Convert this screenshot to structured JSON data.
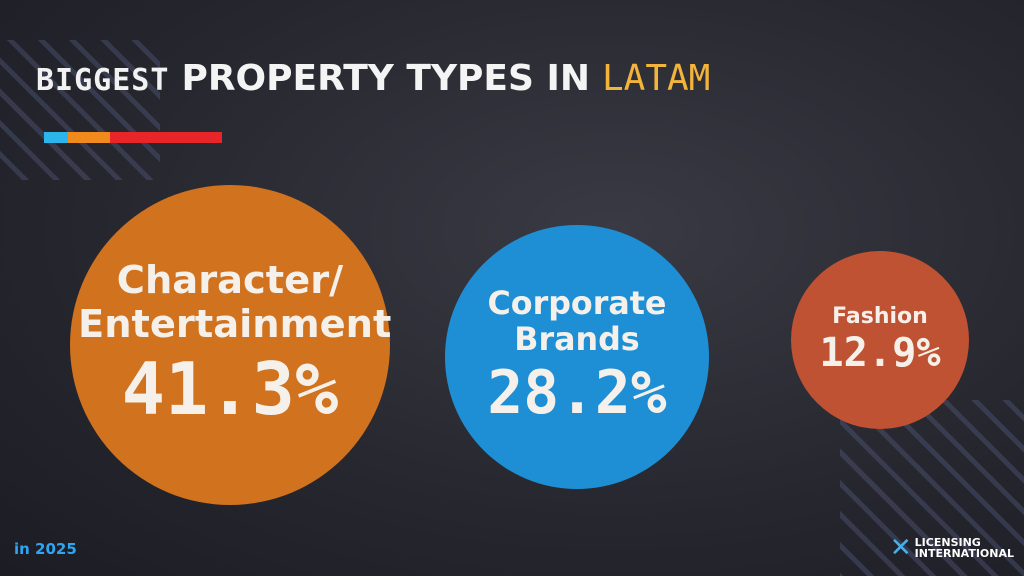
{
  "chart_data": {
    "type": "bubble",
    "title": [
      "BIGGEST",
      "PROPERTY TYPES IN",
      "LATAM"
    ],
    "categories": [
      "Character/ Entertainment",
      "Corporate Brands",
      "Fashion"
    ],
    "values": [
      41.3,
      28.2,
      12.9
    ],
    "value_labels": [
      "41.3%",
      "28.2%",
      "12.9%"
    ],
    "colors": [
      "#d0721e",
      "#1e8fd5",
      "#bf5232"
    ],
    "footnote": "in 2025",
    "logo": [
      "LICENSING",
      "INTERNATIONAL"
    ]
  }
}
